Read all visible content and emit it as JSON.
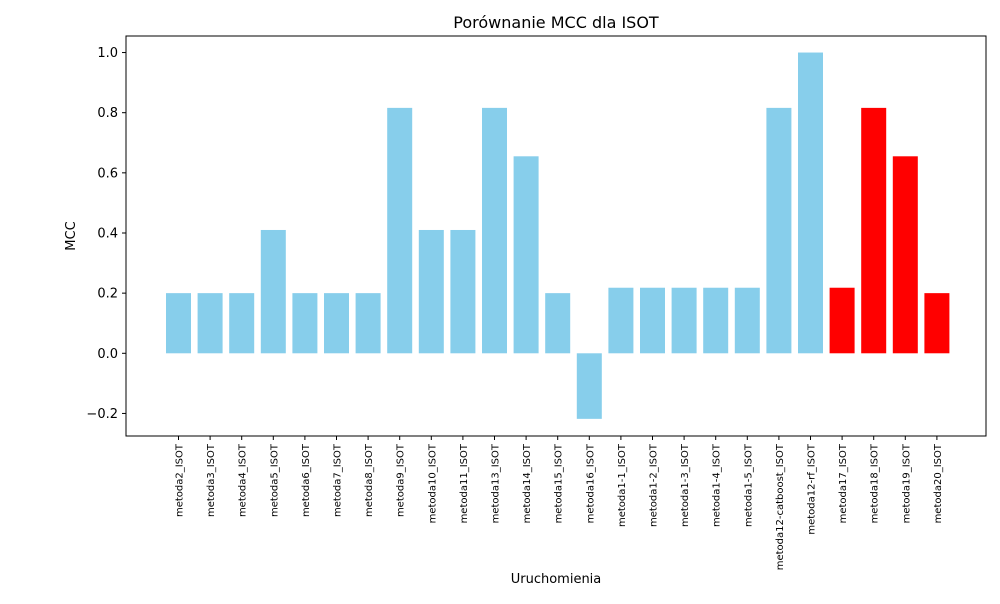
{
  "chart_data": {
    "type": "bar",
    "title": "Porównanie MCC dla ISOT",
    "xlabel": "Uruchomienia",
    "ylabel": "MCC",
    "ylim": [
      -0.275,
      1.055
    ],
    "yticks": [
      -0.2,
      0.0,
      0.2,
      0.4,
      0.6,
      0.8,
      1.0
    ],
    "ytick_labels": [
      "−0.2",
      "0.0",
      "0.2",
      "0.4",
      "0.6",
      "0.8",
      "1.0"
    ],
    "grid": false,
    "legend": "none",
    "categories": [
      "metoda2_ISOT",
      "metoda3_ISOT",
      "metoda4_ISOT",
      "metoda5_ISOT",
      "metoda6_ISOT",
      "metoda7_ISOT",
      "metoda8_ISOT",
      "metoda9_ISOT",
      "metoda10_ISOT",
      "metoda11_ISOT",
      "metoda13_ISOT",
      "metoda14_ISOT",
      "metoda15_ISOT",
      "metoda16_ISOT",
      "metoda1-1_ISOT",
      "metoda1-2_ISOT",
      "metoda1-3_ISOT",
      "metoda1-4_ISOT",
      "metoda1-5_ISOT",
      "metoda12-catboost_ISOT",
      "metoda12-rf_ISOT",
      "metoda17_ISOT",
      "metoda18_ISOT",
      "metoda19_ISOT",
      "metoda20_ISOT"
    ],
    "values": [
      0.2,
      0.2,
      0.2,
      0.41,
      0.2,
      0.2,
      0.2,
      0.816,
      0.41,
      0.41,
      0.816,
      0.655,
      0.2,
      -0.218,
      0.218,
      0.218,
      0.218,
      0.218,
      0.218,
      0.816,
      1.0,
      0.218,
      0.816,
      0.655,
      0.2
    ],
    "colors": [
      "#87ceeb",
      "#87ceeb",
      "#87ceeb",
      "#87ceeb",
      "#87ceeb",
      "#87ceeb",
      "#87ceeb",
      "#87ceeb",
      "#87ceeb",
      "#87ceeb",
      "#87ceeb",
      "#87ceeb",
      "#87ceeb",
      "#87ceeb",
      "#87ceeb",
      "#87ceeb",
      "#87ceeb",
      "#87ceeb",
      "#87ceeb",
      "#87ceeb",
      "#87ceeb",
      "#ff0000",
      "#ff0000",
      "#ff0000",
      "#ff0000"
    ]
  }
}
